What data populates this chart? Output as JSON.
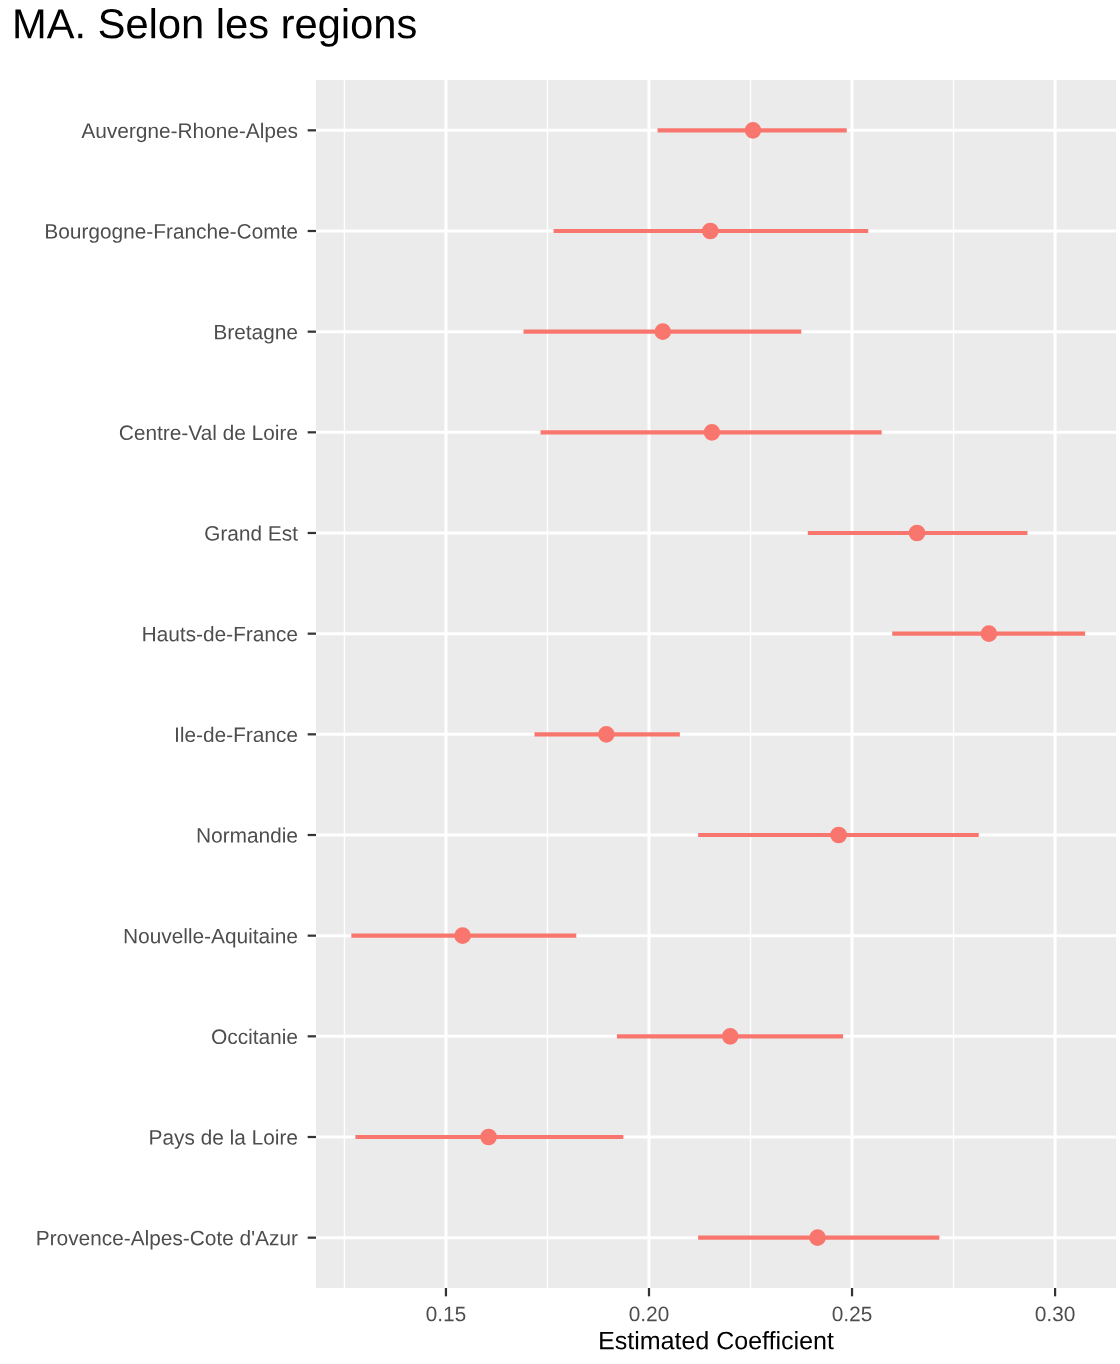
{
  "chart_data": {
    "type": "scatter",
    "orientation": "horizontal",
    "title": "MA. Selon les regions",
    "xlabel": "Estimated Coefficient",
    "categories": [
      "Auvergne-Rhone-Alpes",
      "Bourgogne-Franche-Comte",
      "Bretagne",
      "Centre-Val de Loire",
      "Grand Est",
      "Hauts-de-France",
      "Ile-de-France",
      "Normandie",
      "Nouvelle-Aquitaine",
      "Occitanie",
      "Pays de la Loire",
      "Provence-Alpes-Cote d'Azur"
    ],
    "values": [
      0.2256,
      0.2151,
      0.2034,
      0.2155,
      0.266,
      0.2837,
      0.1895,
      0.2467,
      0.1541,
      0.22,
      0.1605,
      0.2415
    ],
    "errors": [
      [
        0.2021,
        0.2487
      ],
      [
        0.1765,
        0.254
      ],
      [
        0.1691,
        0.2375
      ],
      [
        0.1733,
        0.2573
      ],
      [
        0.2391,
        0.2932
      ],
      [
        0.2599,
        0.3074
      ],
      [
        0.1718,
        0.2076
      ],
      [
        0.2121,
        0.2812
      ],
      [
        0.1267,
        0.1821
      ],
      [
        0.1921,
        0.2478
      ],
      [
        0.1277,
        0.1937
      ],
      [
        0.2121,
        0.2715
      ]
    ],
    "color": "#f8766d",
    "marker": "circle",
    "grid": true,
    "xlim": [
      0.118,
      0.315
    ],
    "xticks": [
      {
        "value": 0.125,
        "label": null
      },
      {
        "value": 0.15,
        "label": "0.15"
      },
      {
        "value": 0.175,
        "label": null
      },
      {
        "value": 0.2,
        "label": "0.20"
      },
      {
        "value": 0.225,
        "label": null
      },
      {
        "value": 0.25,
        "label": "0.25"
      },
      {
        "value": 0.275,
        "label": null
      },
      {
        "value": 0.3,
        "label": "0.30"
      }
    ]
  }
}
